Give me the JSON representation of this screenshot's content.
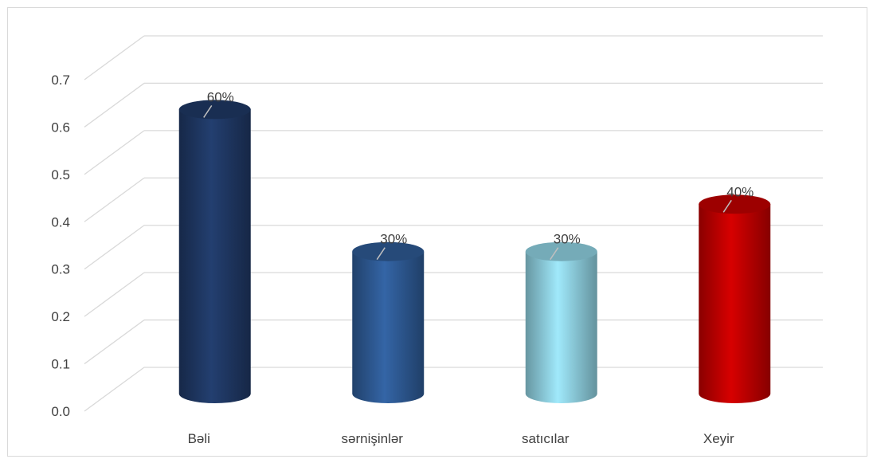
{
  "chart_data": {
    "type": "bar",
    "style": "3d-cylinder",
    "categories": [
      "Bəli",
      "sərnişinlər",
      "satıcılar",
      "Xeyir"
    ],
    "values": [
      0.6,
      0.3,
      0.3,
      0.4
    ],
    "data_labels": [
      "60%",
      "30%",
      "30%",
      "40%"
    ],
    "colors": [
      "#1f3864",
      "#2e5a94",
      "#8fd0e0",
      "#c00000"
    ],
    "ylim": [
      0,
      0.7
    ],
    "y_ticks": [
      "0.0",
      "0.1",
      "0.2",
      "0.3",
      "0.4",
      "0.5",
      "0.6",
      "0.7"
    ],
    "grid": true,
    "title": "",
    "xlabel": "",
    "ylabel": ""
  }
}
